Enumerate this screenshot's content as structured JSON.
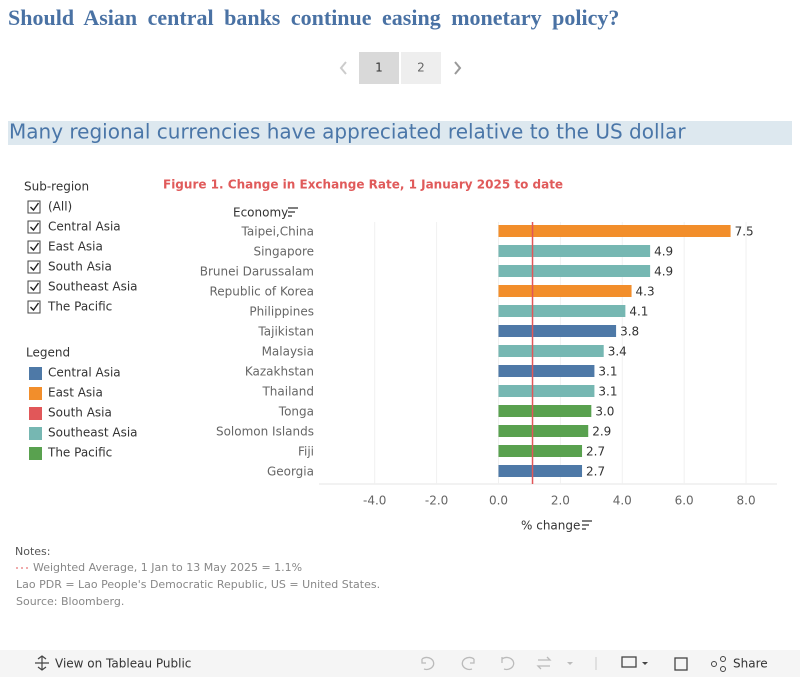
{
  "header": {
    "title": "Should Asian central banks continue easing monetary policy?",
    "pages": [
      "1",
      "2"
    ],
    "subtitle": "Many regional currencies have appreciated relative to the US dollar"
  },
  "filter": {
    "title": "Sub-region",
    "options": [
      "(All)",
      "Central Asia",
      "East Asia",
      "South Asia",
      "Southeast Asia",
      "The Pacific"
    ]
  },
  "legend": {
    "title": "Legend",
    "items": [
      {
        "name": "Central Asia",
        "color": "#4e79a7"
      },
      {
        "name": "East Asia",
        "color": "#f28e2b"
      },
      {
        "name": "South Asia",
        "color": "#e15759"
      },
      {
        "name": "Southeast Asia",
        "color": "#76b7b2"
      },
      {
        "name": "The Pacific",
        "color": "#59a14f"
      }
    ]
  },
  "chart_data": {
    "type": "bar",
    "orientation": "horizontal",
    "title": "Figure 1. Change in Exchange Rate, 1 January 2025 to date",
    "category_label": "Economy",
    "x_label": "% change",
    "categories": [
      "Taipei,China",
      "Singapore",
      "Brunei Darussalam",
      "Republic of Korea",
      "Philippines",
      "Tajikistan",
      "Malaysia",
      "Kazakhstan",
      "Thailand",
      "Tonga",
      "Solomon Islands",
      "Fiji",
      "Georgia"
    ],
    "values": [
      7.5,
      4.9,
      4.9,
      4.3,
      4.1,
      3.8,
      3.4,
      3.1,
      3.1,
      3.0,
      2.9,
      2.7,
      2.7
    ],
    "value_labels": [
      "7.5",
      "4.9",
      "4.9",
      "4.3",
      "4.1",
      "3.8",
      "3.4",
      "3.1",
      "3.1",
      "3.0",
      "2.9",
      "2.7",
      "2.7"
    ],
    "colors": [
      "#f28e2b",
      "#76b7b2",
      "#76b7b2",
      "#f28e2b",
      "#76b7b2",
      "#4e79a7",
      "#76b7b2",
      "#4e79a7",
      "#76b7b2",
      "#59a14f",
      "#59a14f",
      "#59a14f",
      "#4e79a7"
    ],
    "xlim": [
      -5.8,
      9.0
    ],
    "xticks": [
      {
        "value": -4,
        "label": "-4.0"
      },
      {
        "value": -2,
        "label": "-2.0"
      },
      {
        "value": 0,
        "label": "0.0"
      },
      {
        "value": 2,
        "label": "2.0"
      },
      {
        "value": 4,
        "label": "4.0"
      },
      {
        "value": 6,
        "label": "6.0"
      },
      {
        "value": 8,
        "label": "8.0"
      }
    ],
    "grid": true,
    "reference_line": 1.1,
    "reference_color": "#e15759"
  },
  "notes": {
    "title": "Notes:",
    "reference": "Weighted Average, 1 Jan to 13 May 2025 = 1.1%",
    "lines": [
      "Lao PDR = Lao People's Democratic Republic, US = United States.",
      "Source: Bloomberg."
    ]
  },
  "toolbar": {
    "view": "View on Tableau Public",
    "share": "Share"
  }
}
